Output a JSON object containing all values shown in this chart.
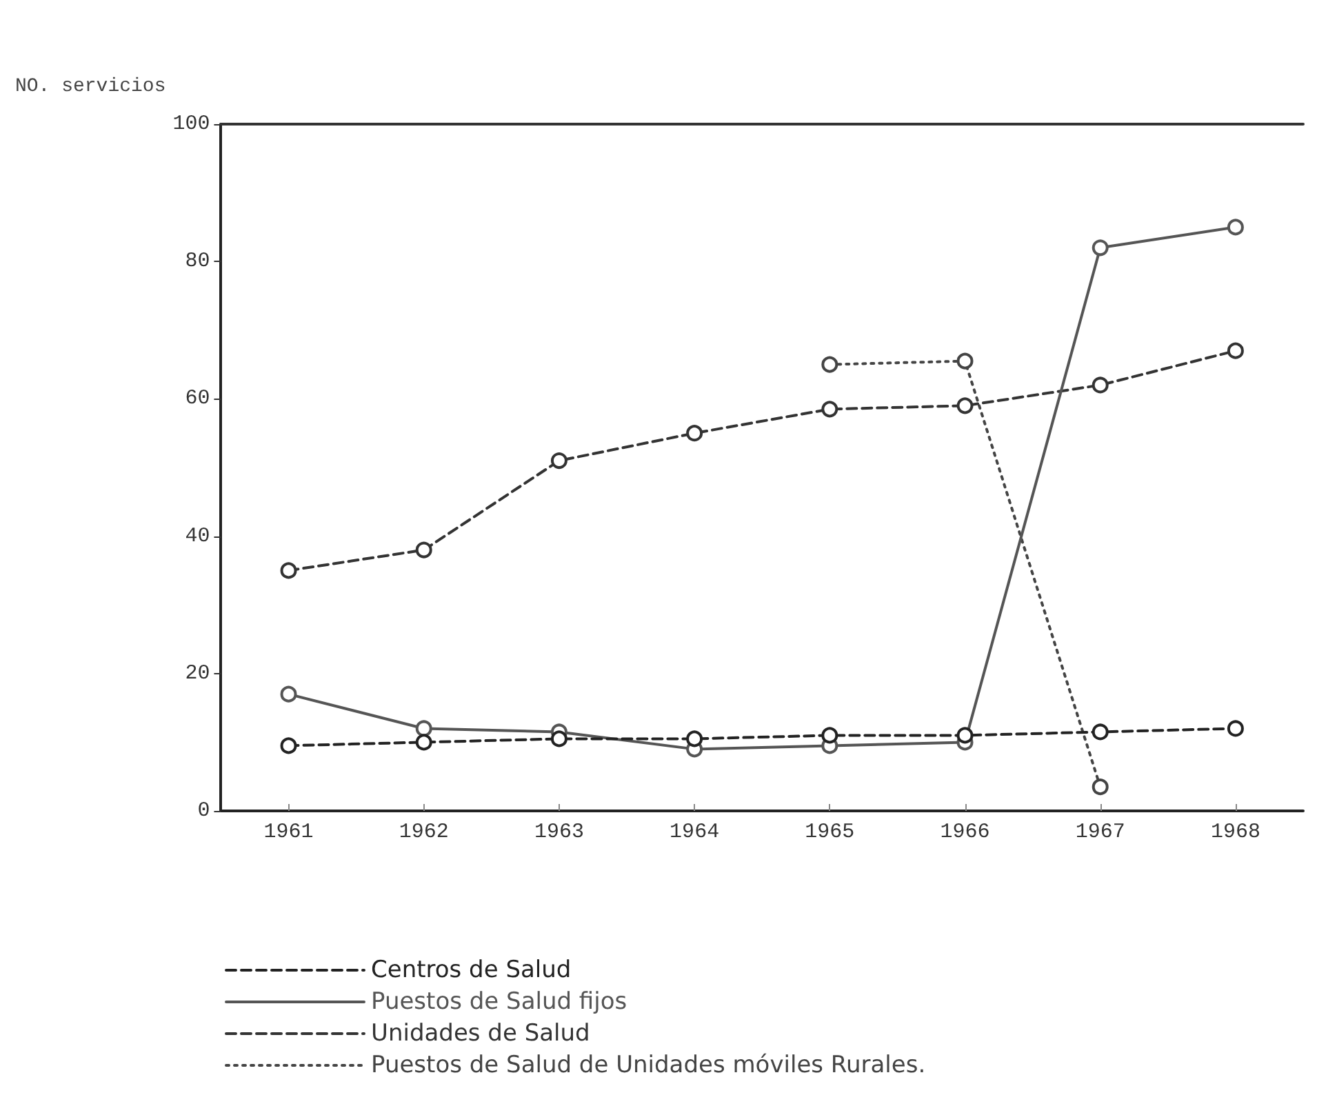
{
  "chart_data": {
    "type": "line",
    "ylabel": "NO. servicios",
    "categories": [
      "1961",
      "1962",
      "1963",
      "1964",
      "1965",
      "1966",
      "1967",
      "1968"
    ],
    "ylim": [
      0,
      100
    ],
    "yticks": [
      0,
      20,
      40,
      60,
      80,
      100
    ],
    "grid": false,
    "legend": "bottom",
    "marker": "circle",
    "series": [
      {
        "name": "Centros de Salud",
        "color": "#222222",
        "line_style": "dashed",
        "values": [
          9.5,
          10,
          10.5,
          10.5,
          11,
          11,
          11.5,
          12
        ]
      },
      {
        "name": "Puestos de Salud fijos",
        "color": "#555555",
        "line_style": "solid",
        "values": [
          17,
          12,
          11.5,
          9,
          9.5,
          10,
          82,
          85
        ]
      },
      {
        "name": "Unidades de Salud",
        "color": "#333333",
        "line_style": "dashed",
        "values": [
          35,
          38,
          51,
          55,
          58.5,
          59,
          62,
          67
        ]
      },
      {
        "name": "Puestos de Salud de Unidades móviles Rurales.",
        "color": "#444444",
        "line_style": "dotted",
        "values": [
          null,
          null,
          null,
          null,
          65,
          65.5,
          3.5,
          null
        ]
      }
    ]
  }
}
